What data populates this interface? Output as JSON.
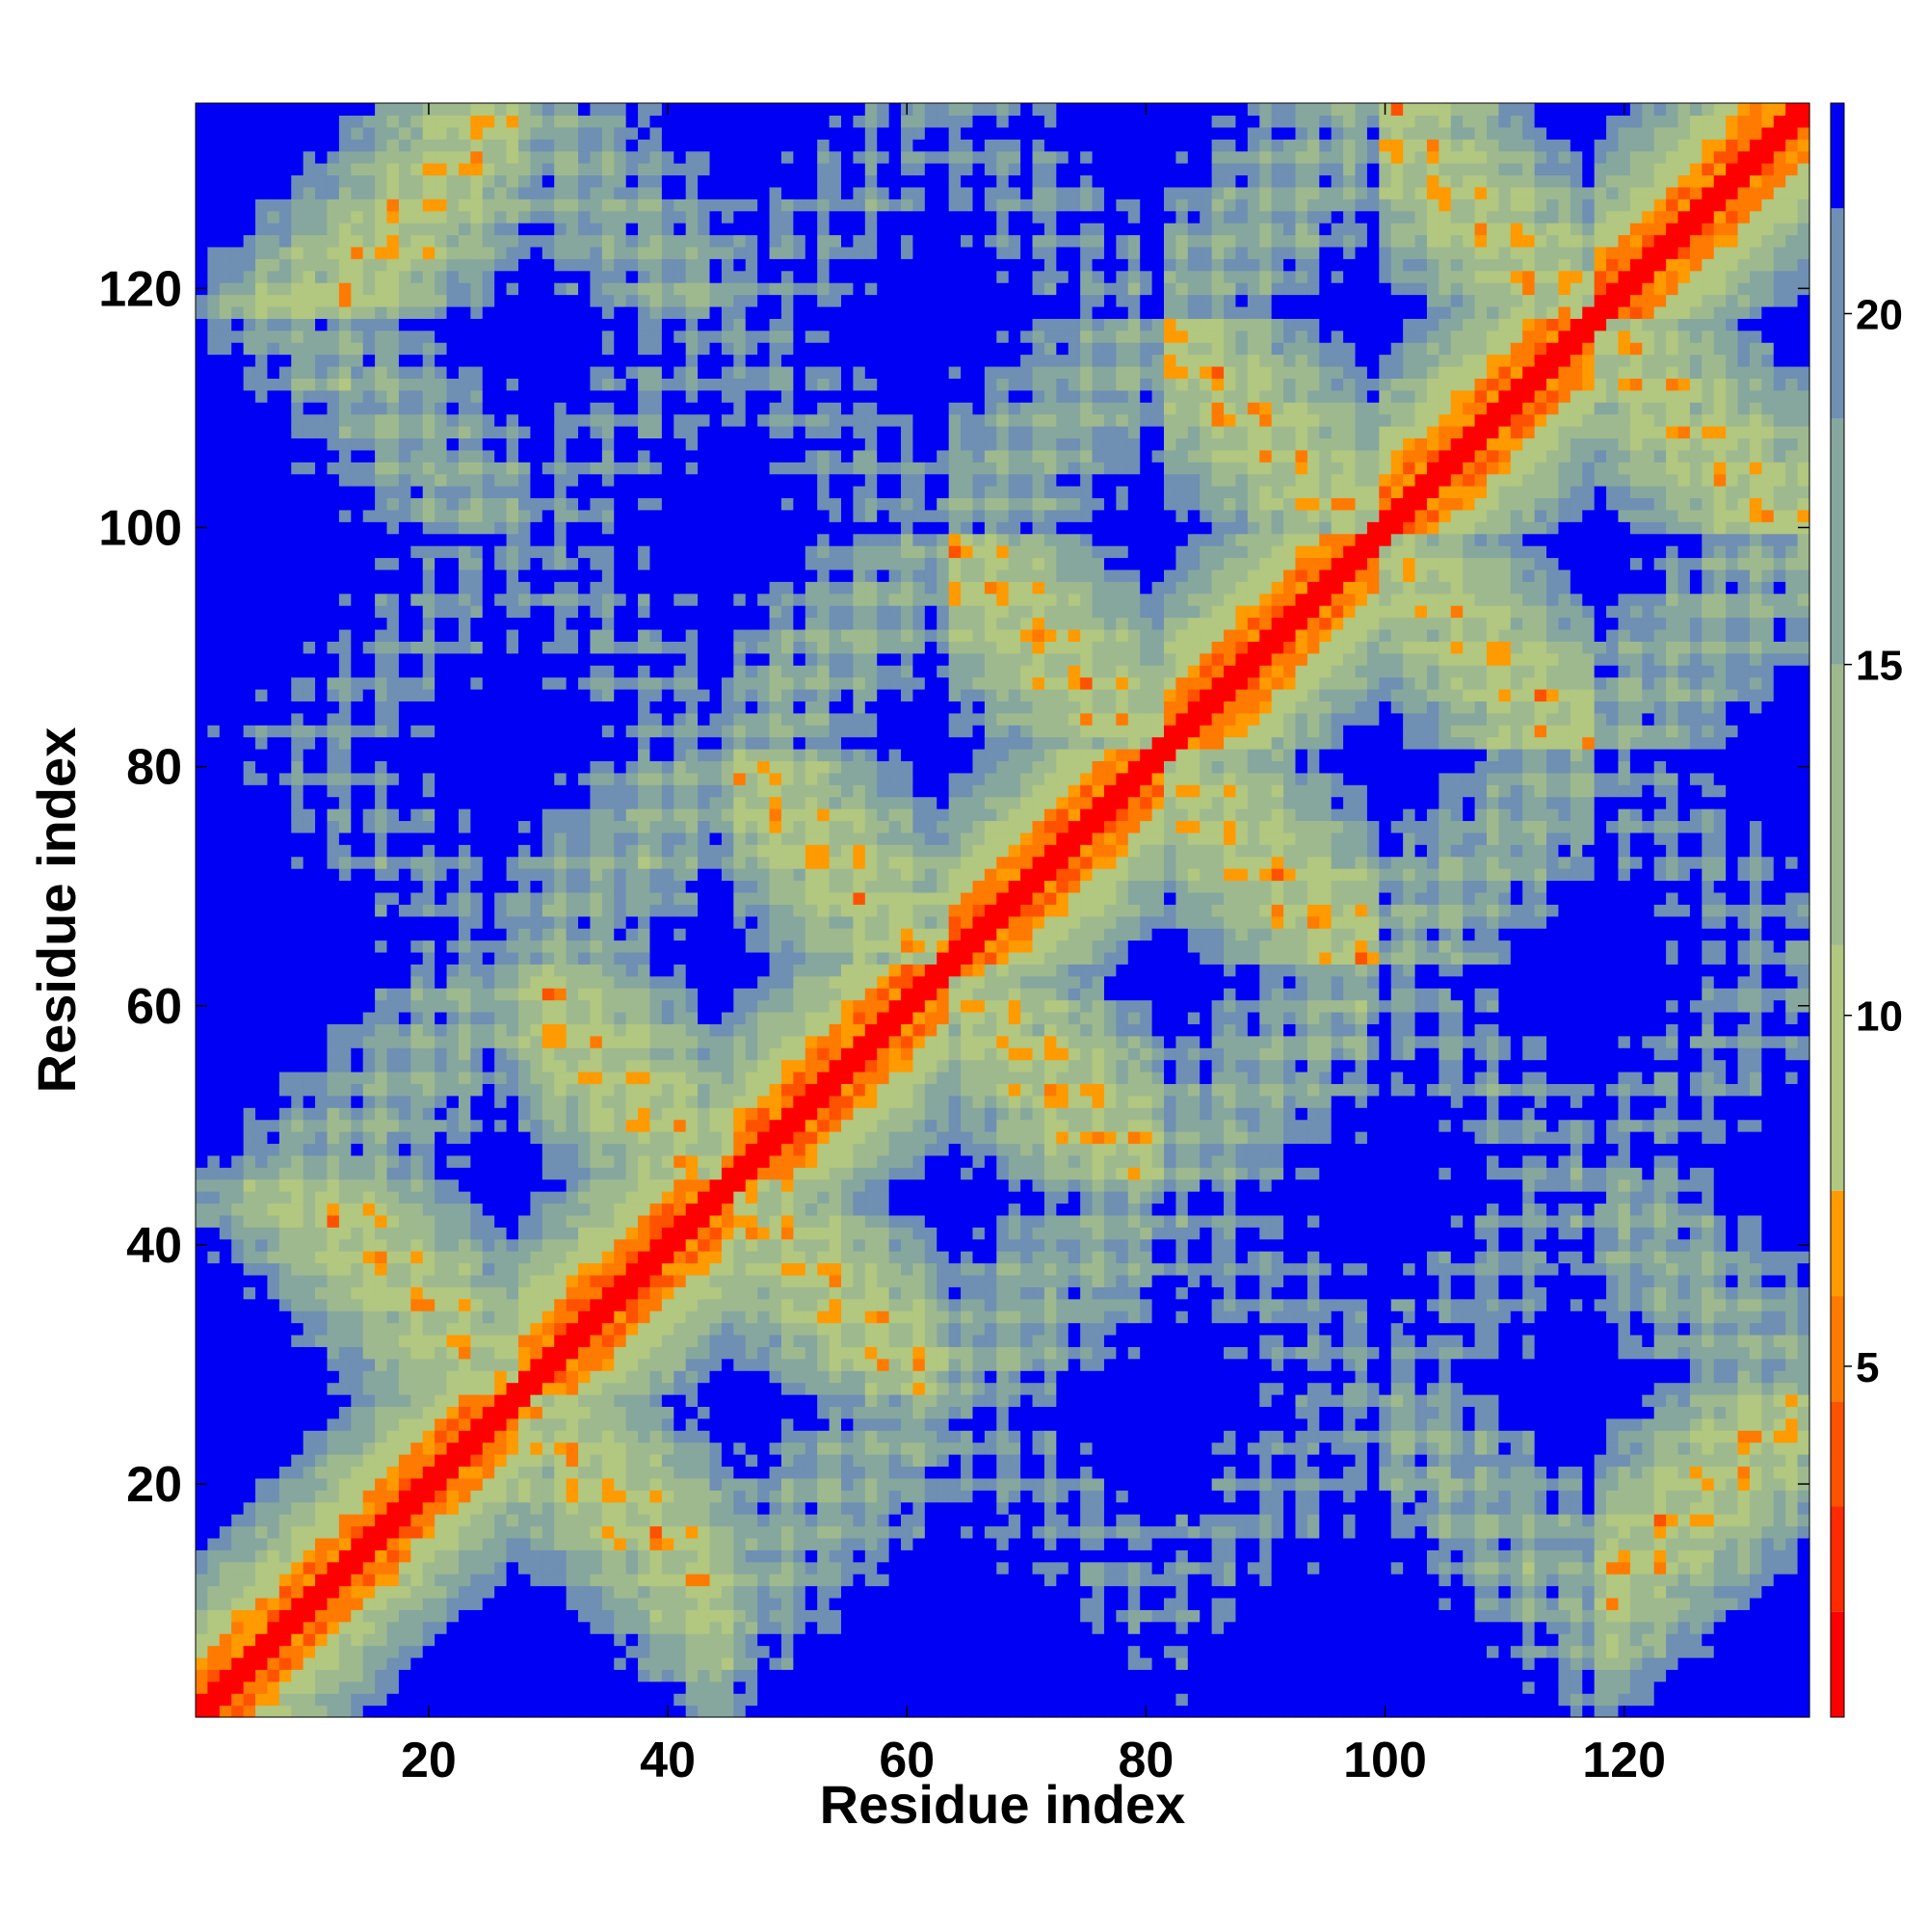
{
  "chart_data": {
    "type": "heatmap",
    "title": "",
    "xlabel": "Residue index",
    "ylabel": "Residue index",
    "xlim": [
      1,
      135
    ],
    "ylim": [
      1,
      135
    ],
    "n_residues": 135,
    "x_ticks": [
      20,
      40,
      60,
      80,
      100,
      120
    ],
    "y_ticks": [
      20,
      40,
      60,
      80,
      100,
      120
    ],
    "x_tick_labels": [
      "20",
      "40",
      "60",
      "80",
      "100",
      "120"
    ],
    "y_tick_labels": [
      "20",
      "40",
      "60",
      "80",
      "100",
      "120"
    ],
    "colorbar": {
      "range": [
        0,
        23
      ],
      "ticks": [
        5,
        10,
        15,
        20
      ],
      "tick_labels": [
        "5",
        "10",
        "15",
        "20"
      ],
      "bands": [
        {
          "from": 0,
          "to": 1.5,
          "color": "#ff0000"
        },
        {
          "from": 1.5,
          "to": 3,
          "color": "#ff2a00"
        },
        {
          "from": 3,
          "to": 4.5,
          "color": "#ff5200"
        },
        {
          "from": 4.5,
          "to": 6,
          "color": "#ff7a00"
        },
        {
          "from": 6,
          "to": 7.5,
          "color": "#ff9a00"
        },
        {
          "from": 7.5,
          "to": 11,
          "color": "#b2c77f"
        },
        {
          "from": 11,
          "to": 15,
          "color": "#9fb98f"
        },
        {
          "from": 15,
          "to": 18.5,
          "color": "#86a79e"
        },
        {
          "from": 18.5,
          "to": 21.5,
          "color": "#6f8fb3"
        },
        {
          "from": 21.5,
          "to": 23,
          "color": "#0000f5"
        }
      ]
    },
    "helix_axis_residues": [
      10,
      27,
      45,
      63,
      81,
      99,
      117,
      135
    ],
    "colors": {
      "background": "#ffffff",
      "far": "#0000f5",
      "contact": "#ff0000"
    }
  }
}
